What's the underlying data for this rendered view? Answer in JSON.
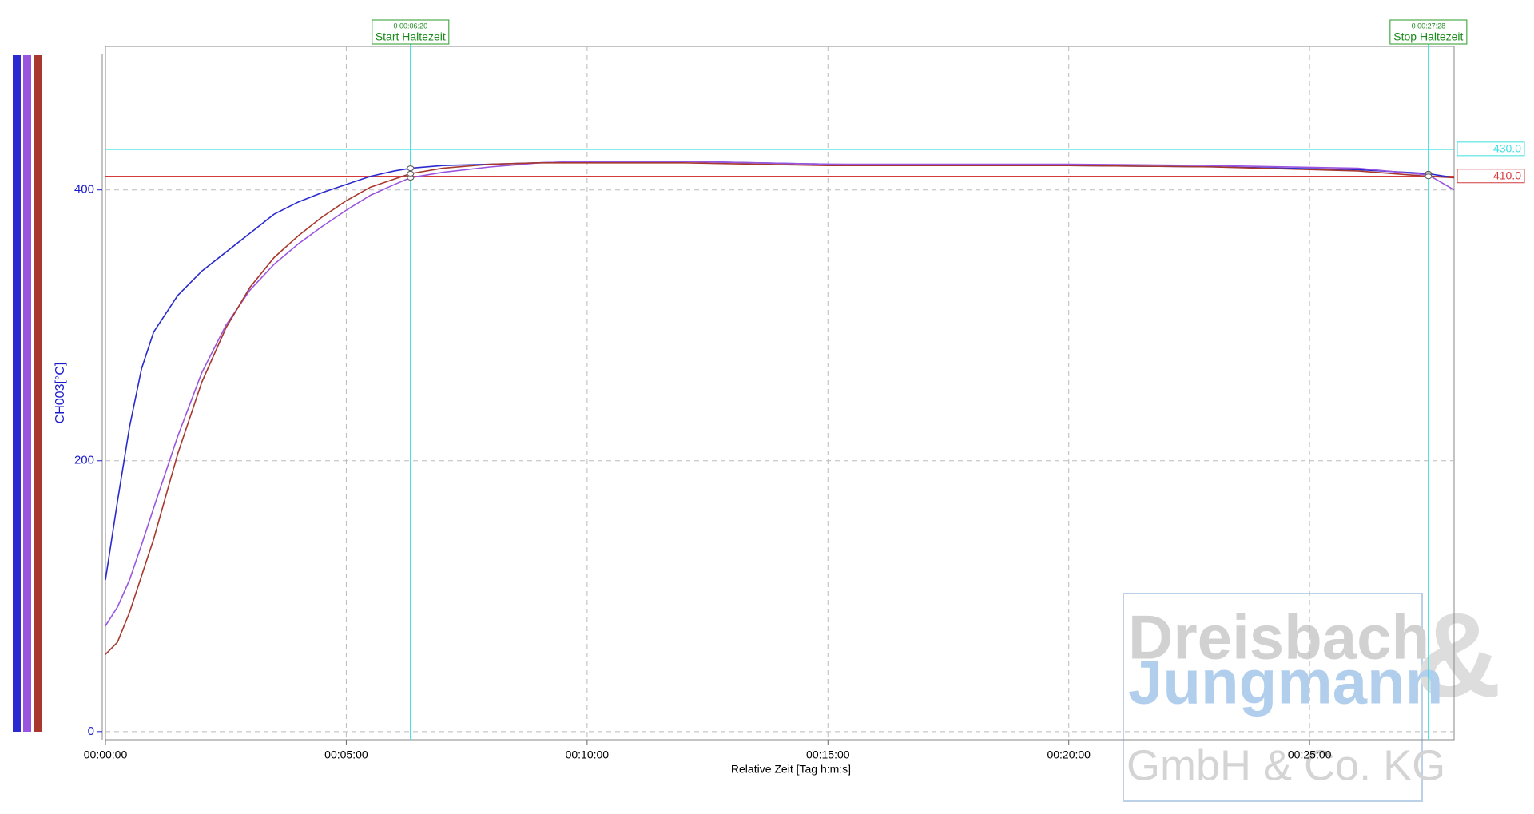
{
  "chart_data": {
    "type": "line",
    "x_label": "Relative Zeit [Tag h:m:s]",
    "y_label": "CH003[°C]",
    "x": [
      0,
      15,
      30,
      45,
      60,
      90,
      120,
      150,
      180,
      210,
      240,
      270,
      300,
      330,
      360,
      380,
      420,
      480,
      540,
      600,
      720,
      900,
      1080,
      1200,
      1380,
      1560,
      1648,
      1680
    ],
    "series": [
      {
        "color": "#2a2ad0",
        "values": [
          112,
          170,
          225,
          268,
          295,
          322,
          340,
          354,
          368,
          382,
          391,
          398,
          404,
          410,
          414,
          416,
          418,
          419,
          420,
          421,
          421,
          419,
          418,
          418,
          417,
          415,
          412,
          409
        ]
      },
      {
        "color": "#9a55e0",
        "values": [
          78,
          92,
          112,
          138,
          165,
          218,
          265,
          300,
          326,
          345,
          360,
          373,
          385,
          396,
          404,
          409,
          413,
          417,
          420,
          421,
          421,
          419,
          419,
          419,
          418,
          416,
          411,
          400
        ]
      },
      {
        "color": "#a8382e",
        "values": [
          57,
          66,
          88,
          115,
          142,
          205,
          258,
          298,
          328,
          350,
          366,
          380,
          392,
          402,
          408,
          412,
          416,
          419,
          420,
          420,
          420,
          418,
          418,
          418,
          417,
          414,
          410,
          409
        ]
      }
    ],
    "xlim": [
      0,
      1680
    ],
    "ylim": [
      -6,
      506
    ],
    "xticks": [
      {
        "value": 0,
        "label": "00:00:00"
      },
      {
        "value": 300,
        "label": "00:05:00"
      },
      {
        "value": 600,
        "label": "00:10:00"
      },
      {
        "value": 900,
        "label": "00:15:00"
      },
      {
        "value": 1200,
        "label": "00:20:00"
      },
      {
        "value": 1500,
        "label": "00:25:00"
      }
    ],
    "yticks": [
      0,
      200,
      400
    ],
    "grid": true,
    "reference_lines": [
      {
        "value": 430,
        "label": "430.0",
        "color": "#3ee0e0"
      },
      {
        "value": 410,
        "label": "410.0",
        "color": "#d43a3a"
      }
    ],
    "markers": [
      {
        "x": 380,
        "index": 15,
        "time_label": "0 00:06:20",
        "label": "Start Haltezeit"
      },
      {
        "x": 1648,
        "index": 26,
        "time_label": "0 00:27:28",
        "label": "Stop Haltezeit"
      }
    ]
  },
  "watermark": {
    "line1": "Dreisbach",
    "ampersand": "&",
    "line2": "Jungmann",
    "line3": "GmbH & Co. KG"
  }
}
